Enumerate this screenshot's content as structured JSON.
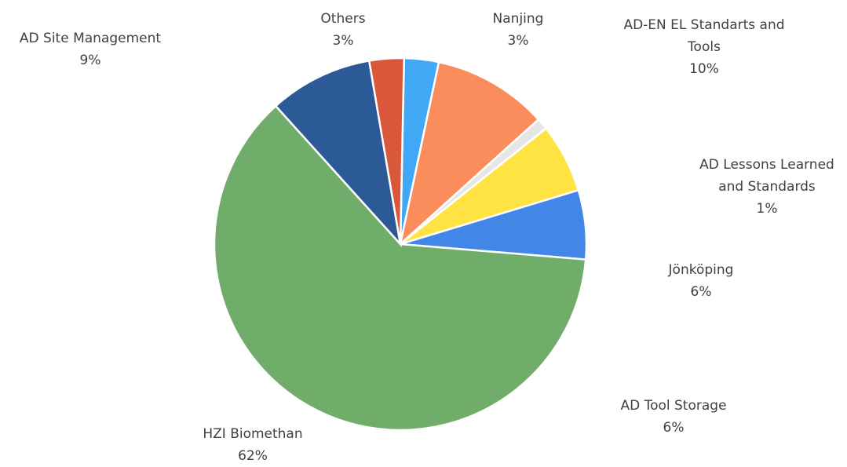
{
  "chart_data": {
    "type": "pie",
    "categories": [
      "Nanjing",
      "AD-EN EL Standarts and Tools",
      "AD Lessons Learned and Standards",
      "Jönköping",
      "AD Tool Storage",
      "HZI Biomethan",
      "AD Site Management",
      "Others"
    ],
    "values": [
      3,
      10,
      1,
      6,
      6,
      62,
      9,
      3
    ],
    "value_labels": [
      "3%",
      "10%",
      "1%",
      "6%",
      "6%",
      "62%",
      "9%",
      "3%"
    ],
    "colors": [
      "#41a8f5",
      "#fb8c5c",
      "#e6e6e6",
      "#ffe342",
      "#4286e8",
      "#70ad6b",
      "#2c5a97",
      "#d9573a"
    ]
  }
}
